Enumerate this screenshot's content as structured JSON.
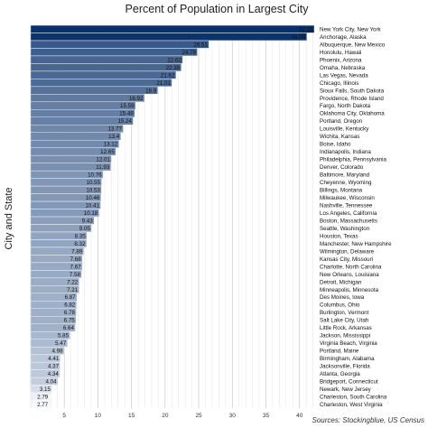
{
  "chart_data": {
    "type": "bar",
    "orientation": "horizontal",
    "title": "Percent of Population in Largest City",
    "xlabel": "",
    "ylabel": "City and State",
    "source": "Sources: Stockingblue, US Census",
    "xlim": [
      0,
      42.19
    ],
    "xticks": [
      5,
      10,
      15,
      20,
      25,
      30,
      35,
      40
    ],
    "grid": true,
    "color_low": "#f4f7fc",
    "color_high": "#08306b",
    "categories": [
      "New York City, New York",
      "Anchorage, Alaska",
      "Albuquerque, New Mexico",
      "Honolulu, Hawaii",
      "Phoenix, Arizona",
      "Omaha, Nebraska",
      "Las Vegas, Nevada",
      "Chicago, Illinois",
      "Sioux Falls, South Dakota",
      "Providence, Rhode Island",
      "Fargo, North Dakota",
      "Oklahoma City, Oklahoma",
      "Portland, Oregon",
      "Louisville, Kentucky",
      "Wichita, Kansas",
      "Boise, Idaho",
      "Indianapolis, Indiana",
      "Philadelphia, Pennsylvania",
      "Denver, Colorado",
      "Baltimore, Maryland",
      "Cheyenne, Wyoming",
      "Billings, Montana",
      "Milwaukee, Wisconsin",
      "Nashville, Tennessee",
      "Los Angeles, California",
      "Boston, Massachusetts",
      "Seattle, Washington",
      "Houston, Texas",
      "Manchester, New Hampshire",
      "Wilmington, Delaware",
      "Kansas City, Missouri",
      "Charlotte, North Carolina",
      "New Orleans, Louisiana",
      "Detroit, Michigan",
      "Minneapolis, Minnesota",
      "Des Moines, Iowa",
      "Columbus, Ohio",
      "Burlington, Vermont",
      "Salt Lake City, Utah",
      "Little Rock, Arkansas",
      "Jackson, Mississippi",
      "Virginia Beach, Virginia",
      "Portland, Maine",
      "Birmingham, Alabama",
      "Jacksonville, Florida",
      "Atlanta, Georgia",
      "Bridgeport, Connecticut",
      "Newark, New Jersey",
      "Charleston, South Carolina",
      "Charleston, West Virginia"
    ],
    "values": [
      42.19,
      41.09,
      26.51,
      24.79,
      22.62,
      22.39,
      21.62,
      21.01,
      18.9,
      16.92,
      15.59,
      15.48,
      15.24,
      13.77,
      13.4,
      13.12,
      12.65,
      12.01,
      11.93,
      10.76,
      10.55,
      10.53,
      10.46,
      10.41,
      10.18,
      9.43,
      9.05,
      8.35,
      8.32,
      7.89,
      7.68,
      7.67,
      7.58,
      7.22,
      7.21,
      6.87,
      6.82,
      6.78,
      6.75,
      6.64,
      5.85,
      5.47,
      4.98,
      4.41,
      4.37,
      4.34,
      4.04,
      3.15,
      2.79,
      2.77
    ]
  }
}
